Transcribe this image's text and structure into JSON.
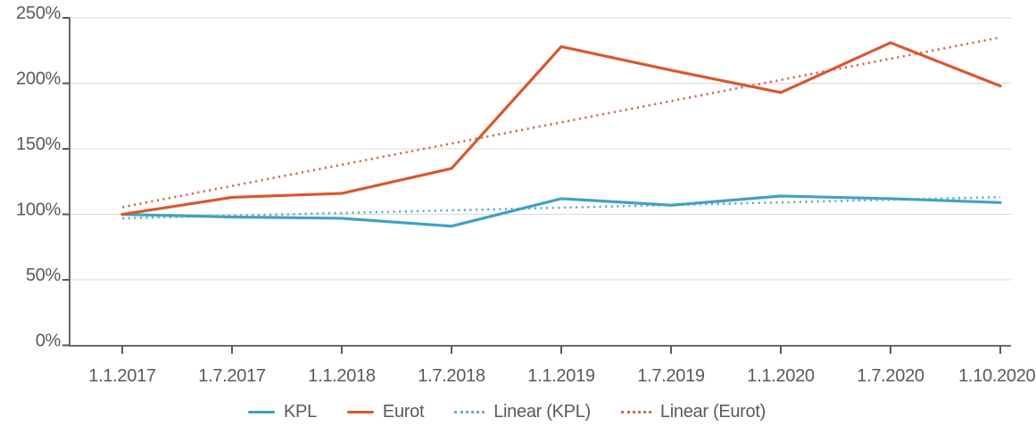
{
  "chart_data": {
    "type": "line",
    "title": "",
    "xlabel": "",
    "ylabel": "",
    "categories": [
      "1.1.2017",
      "1.7.2017",
      "1.1.2018",
      "1.7.2018",
      "1.1.2019",
      "1.7.2019",
      "1.1.2020",
      "1.7.2020",
      "1.10.2020*"
    ],
    "y_tick_labels": [
      "0%",
      "50%",
      "100%",
      "150%",
      "200%",
      "250%"
    ],
    "ylim": [
      0,
      250
    ],
    "y_step": 50,
    "grid": "horizontal",
    "legend_position": "bottom",
    "series": [
      {
        "name": "KPL",
        "color": "#41A1C4",
        "style": "solid",
        "values": [
          100,
          98,
          97,
          91,
          112,
          107,
          114,
          112,
          109
        ]
      },
      {
        "name": "Eurot",
        "color": "#D9572E",
        "style": "solid",
        "values": [
          100,
          113,
          116,
          135,
          228,
          210,
          193,
          231,
          198
        ]
      }
    ],
    "trendlines": [
      {
        "name": "Linear (KPL)",
        "of": "KPL",
        "color": "#62AECA",
        "style": "dotted",
        "start": 97,
        "end": 113.2
      },
      {
        "name": "Linear (Eurot)",
        "of": "Eurot",
        "color": "#CD6B52",
        "style": "dotted",
        "start": 105.5,
        "end": 235
      }
    ]
  },
  "colors": {
    "axis": "#6A6A6A",
    "tick": "#595959",
    "gridline": "#D9D9D9",
    "label": "#595959",
    "background": "#FFFFFF"
  }
}
